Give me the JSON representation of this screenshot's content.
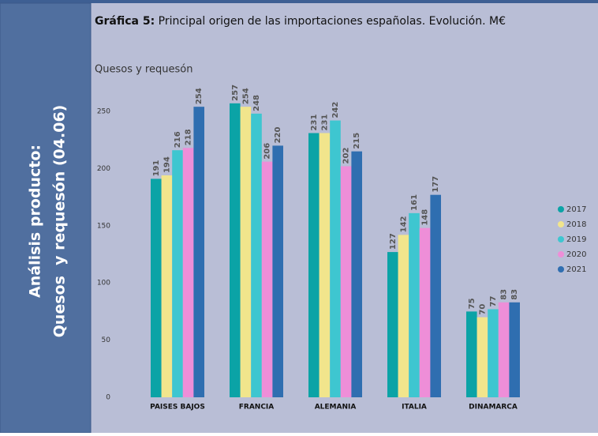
{
  "sidebar": {
    "line1": "Análisis producto:",
    "line2": "Quesos  y requesón (04.06)"
  },
  "header": {
    "label": "Gráfica 5:",
    "text": "Principal origen de las importaciones españolas. Evolución. M€"
  },
  "chart_data": {
    "type": "bar",
    "title": "Quesos y requesón",
    "categories": [
      "PAISES BAJOS",
      "FRANCIA",
      "ALEMANIA",
      "ITALIA",
      "DINAMARCA"
    ],
    "series": [
      {
        "name": "2017",
        "color": "#0ba3a6",
        "values": [
          191,
          257,
          231,
          127,
          75
        ]
      },
      {
        "name": "2018",
        "color": "#f1e58c",
        "values": [
          194,
          254,
          231,
          142,
          70
        ]
      },
      {
        "name": "2019",
        "color": "#3ec6d0",
        "values": [
          216,
          248,
          242,
          161,
          77
        ]
      },
      {
        "name": "2020",
        "color": "#ee8ed8",
        "values": [
          218,
          206,
          202,
          148,
          83
        ]
      },
      {
        "name": "2021",
        "color": "#2f6eb0",
        "values": [
          254,
          220,
          215,
          177,
          83
        ]
      }
    ],
    "ylim": [
      0,
      270
    ],
    "yticks": [
      0,
      50,
      100,
      150,
      200,
      250
    ],
    "grid": false,
    "legend": "right"
  }
}
